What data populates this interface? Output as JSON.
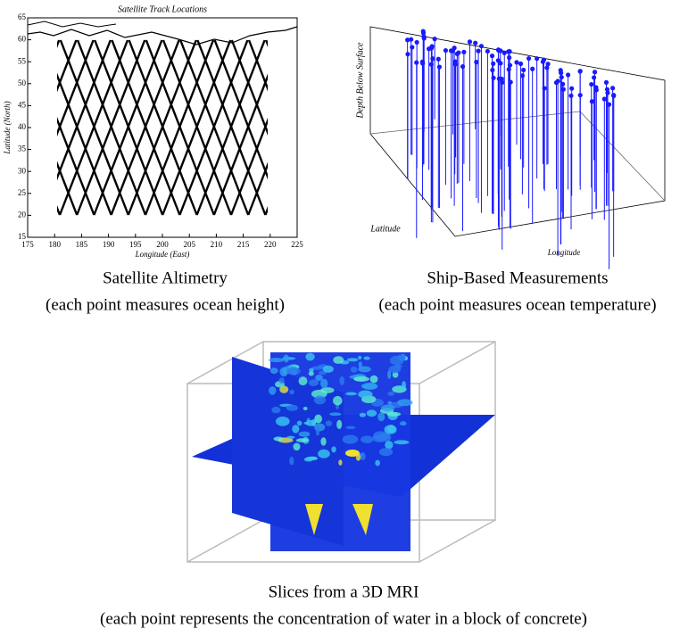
{
  "panels": [
    {
      "title": "Satellite Track Locations",
      "x_label": "Longitude (East)",
      "y_label": "Latitude (North)",
      "xlim": [
        175,
        225
      ],
      "xticks": [
        175,
        180,
        185,
        190,
        195,
        200,
        205,
        210,
        215,
        220,
        225
      ],
      "ylim": [
        15,
        65
      ],
      "yticks": [
        15,
        20,
        25,
        30,
        35,
        40,
        45,
        50,
        55,
        60,
        65
      ],
      "caption": [
        "Satellite Altimetry",
        "(each point measures ocean height)"
      ]
    },
    {
      "z_label": "Depth Below Surface",
      "y_label": "Latitude",
      "x_label": "Longitude",
      "caption": [
        "Ship-Based Measurements",
        "(each point measures ocean temperature)"
      ]
    },
    {
      "caption": [
        "Slices from a 3D MRI",
        "(each point represents the concentration of water in a block of concrete)"
      ]
    }
  ]
}
